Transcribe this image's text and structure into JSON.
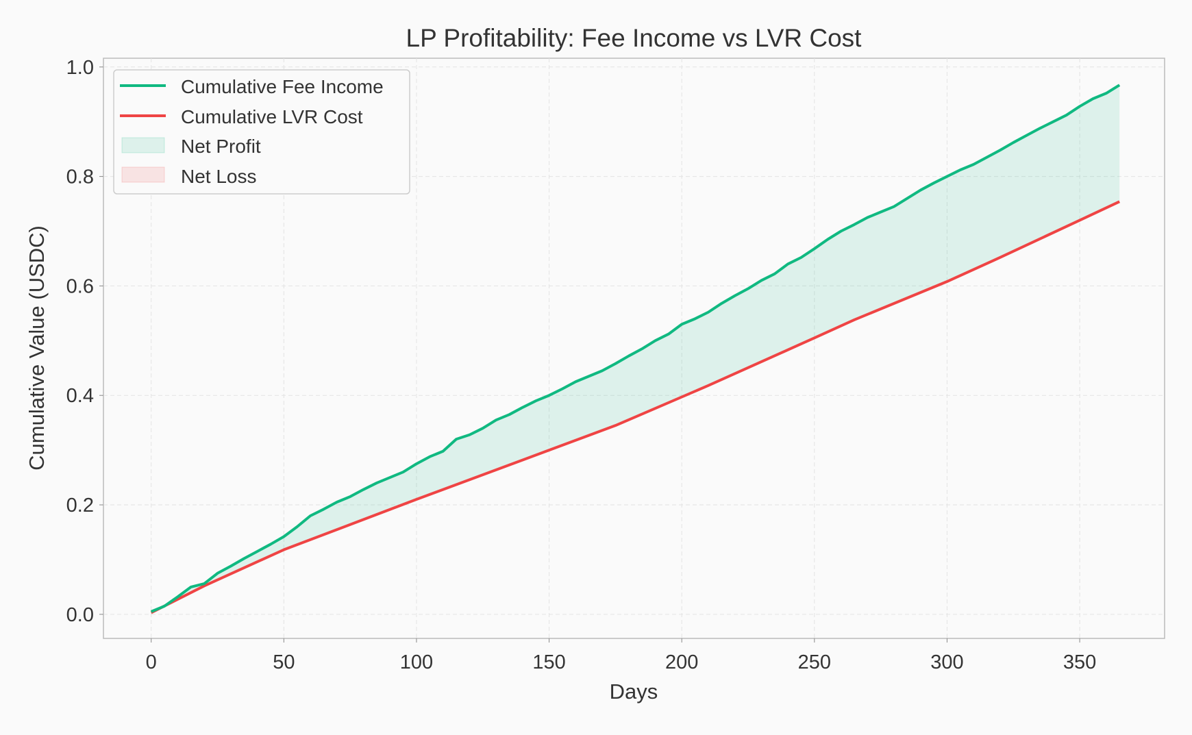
{
  "chart_data": {
    "type": "line",
    "title": "LP Profitability: Fee Income vs LVR Cost",
    "xlabel": "Days",
    "ylabel": "Cumulative Value (USDC)",
    "xlim": [
      -18,
      382
    ],
    "ylim": [
      -0.044,
      1.016
    ],
    "xticks": [
      0,
      50,
      100,
      150,
      200,
      250,
      300,
      350
    ],
    "xtick_labels": [
      "0",
      "50",
      "100",
      "150",
      "200",
      "250",
      "300",
      "350"
    ],
    "yticks": [
      0.0,
      0.2,
      0.4,
      0.6,
      0.8,
      1.0
    ],
    "ytick_labels": [
      "0.0",
      "0.2",
      "0.4",
      "0.6",
      "0.8",
      "1.0"
    ],
    "grid": true,
    "legend_position": "top-left",
    "series": [
      {
        "name": "Cumulative Fee Income",
        "color": "#10b981",
        "x": [
          0,
          5,
          10,
          15,
          20,
          25,
          30,
          35,
          40,
          45,
          50,
          55,
          60,
          65,
          70,
          75,
          80,
          85,
          90,
          95,
          100,
          105,
          110,
          115,
          120,
          125,
          130,
          135,
          140,
          145,
          150,
          155,
          160,
          165,
          170,
          175,
          180,
          185,
          190,
          195,
          200,
          205,
          210,
          215,
          220,
          225,
          230,
          235,
          240,
          245,
          250,
          255,
          260,
          265,
          270,
          275,
          280,
          285,
          290,
          295,
          300,
          305,
          310,
          315,
          320,
          325,
          330,
          335,
          340,
          345,
          350,
          355,
          360,
          365
        ],
        "y": [
          0.005,
          0.015,
          0.032,
          0.05,
          0.056,
          0.075,
          0.088,
          0.102,
          0.115,
          0.128,
          0.142,
          0.16,
          0.18,
          0.192,
          0.205,
          0.215,
          0.228,
          0.24,
          0.25,
          0.26,
          0.275,
          0.288,
          0.298,
          0.32,
          0.328,
          0.34,
          0.355,
          0.365,
          0.378,
          0.39,
          0.4,
          0.412,
          0.425,
          0.435,
          0.445,
          0.458,
          0.472,
          0.485,
          0.5,
          0.512,
          0.53,
          0.54,
          0.552,
          0.568,
          0.582,
          0.595,
          0.61,
          0.622,
          0.64,
          0.652,
          0.668,
          0.685,
          0.7,
          0.712,
          0.725,
          0.735,
          0.745,
          0.76,
          0.775,
          0.788,
          0.8,
          0.812,
          0.822,
          0.835,
          0.848,
          0.862,
          0.875,
          0.888,
          0.9,
          0.912,
          0.928,
          0.942,
          0.952,
          0.967
        ]
      },
      {
        "name": "Cumulative LVR Cost",
        "color": "#ef4444",
        "x": [
          0,
          20,
          50,
          100,
          150,
          175,
          210,
          250,
          265,
          300,
          320,
          350,
          365
        ],
        "y": [
          0.003,
          0.052,
          0.118,
          0.21,
          0.3,
          0.345,
          0.418,
          0.505,
          0.538,
          0.608,
          0.652,
          0.72,
          0.754
        ]
      }
    ],
    "fills": [
      {
        "name": "Net Profit",
        "color": "#10b981",
        "opacity": 0.12
      },
      {
        "name": "Net Loss",
        "color": "#ef4444",
        "opacity": 0.12
      }
    ]
  }
}
